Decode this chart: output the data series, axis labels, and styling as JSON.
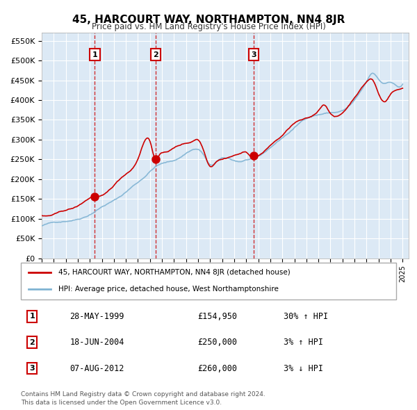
{
  "title": "45, HARCOURT WAY, NORTHAMPTON, NN4 8JR",
  "subtitle": "Price paid vs. HM Land Registry's House Price Index (HPI)",
  "legend_line1": "45, HARCOURT WAY, NORTHAMPTON, NN4 8JR (detached house)",
  "legend_line2": "HPI: Average price, detached house, West Northamptonshire",
  "footer1": "Contains HM Land Registry data © Crown copyright and database right 2024.",
  "footer2": "This data is licensed under the Open Government Licence v3.0.",
  "sales": [
    {
      "label": "1",
      "date": "28-MAY-1999",
      "price": 154950,
      "pct": "30%",
      "dir": "↑"
    },
    {
      "label": "2",
      "date": "18-JUN-2004",
      "price": 250000,
      "pct": "3%",
      "dir": "↑"
    },
    {
      "label": "3",
      "date": "07-AUG-2012",
      "price": 260000,
      "pct": "3%",
      "dir": "↓"
    }
  ],
  "sale_years": [
    1999.41,
    2004.46,
    2012.6
  ],
  "sale_prices": [
    154950,
    250000,
    260000
  ],
  "background_color": "#dce9f5",
  "plot_bg_color": "#dce9f5",
  "grid_color": "#ffffff",
  "red_line_color": "#cc0000",
  "blue_line_color": "#7fb3d3",
  "dashed_line_color": "#cc0000",
  "ylim": [
    0,
    570000
  ],
  "xlim_start": 1995.0,
  "xlim_end": 2025.5,
  "yticks": [
    0,
    50000,
    100000,
    150000,
    200000,
    250000,
    300000,
    350000,
    400000,
    450000,
    500000,
    550000
  ],
  "xticks": [
    1995,
    1996,
    1997,
    1998,
    1999,
    2000,
    2001,
    2002,
    2003,
    2004,
    2005,
    2006,
    2007,
    2008,
    2009,
    2010,
    2011,
    2012,
    2013,
    2014,
    2015,
    2016,
    2017,
    2018,
    2019,
    2020,
    2021,
    2022,
    2023,
    2024,
    2025
  ]
}
